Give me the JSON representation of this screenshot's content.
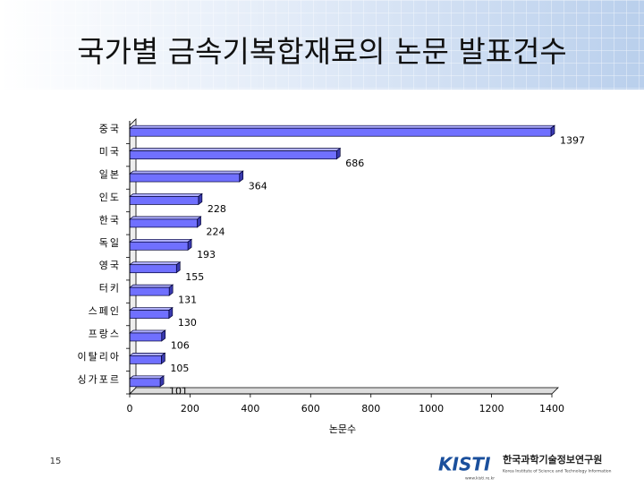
{
  "slide": {
    "title": "국가별 금속기복합재료의 논문 발표건수",
    "page_number": "15",
    "logo": {
      "mark": "KISTI",
      "name": "한국과학기술정보연구원",
      "subtitle": "Korea Institute of Science and Technology Information",
      "url": "www.kisti.re.kr"
    }
  },
  "chart_data": {
    "type": "bar",
    "orientation": "horizontal",
    "categories": [
      "중국",
      "미국",
      "일본",
      "인도",
      "한국",
      "독일",
      "영국",
      "터키",
      "스페인",
      "프랑스",
      "이탈리아",
      "싱가포르"
    ],
    "values": [
      1397,
      686,
      364,
      228,
      224,
      193,
      155,
      131,
      130,
      106,
      105,
      101
    ],
    "color": "#7070ff",
    "xlabel": "논문수",
    "xlim": [
      0,
      1400
    ],
    "xticks": [
      0,
      200,
      400,
      600,
      800,
      1000,
      1200,
      1400
    ]
  }
}
